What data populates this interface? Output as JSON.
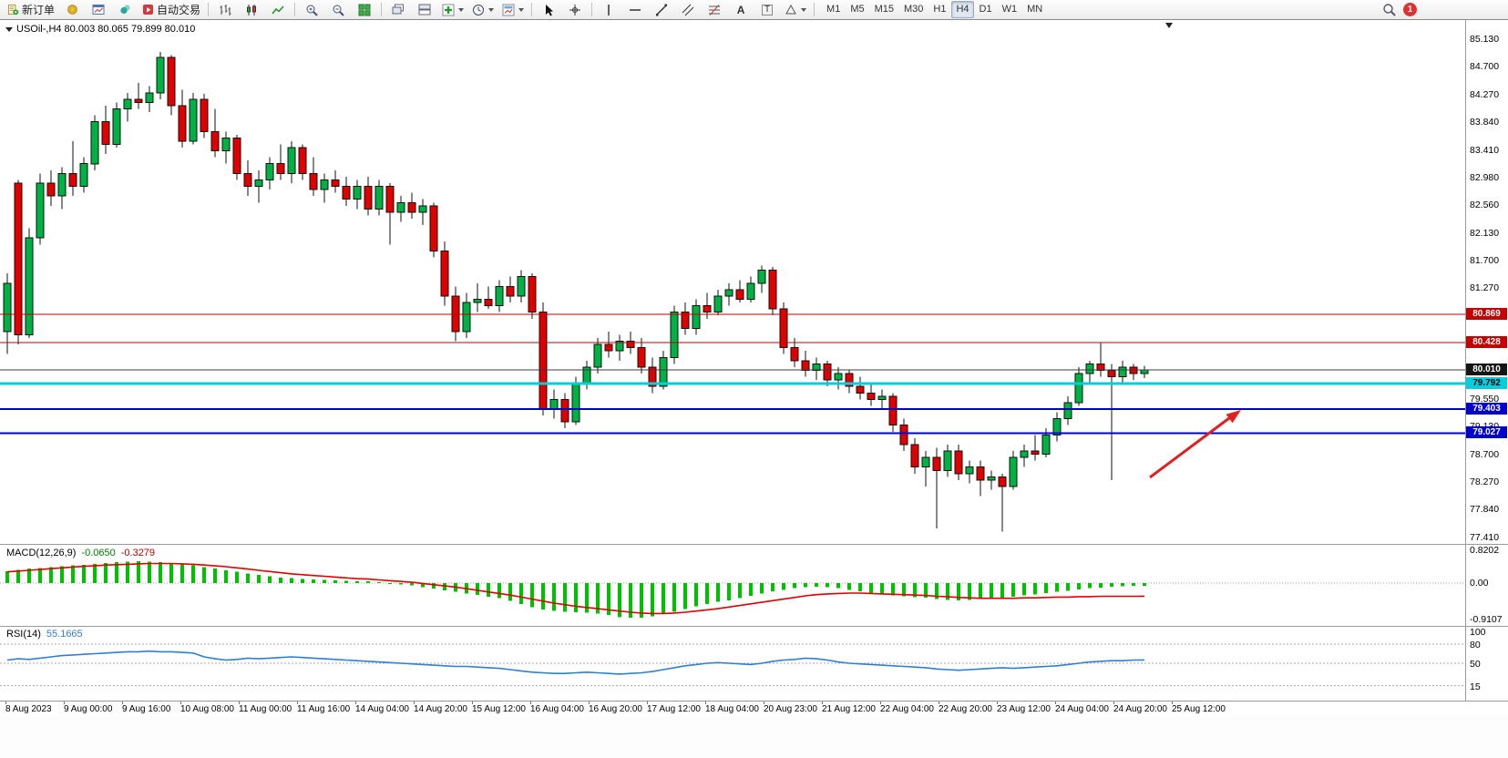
{
  "toolbar": {
    "new_order_label": "新订单",
    "autotrading_label": "自动交易",
    "text_tool_label": "A",
    "label_tool_label": "T",
    "timeframes": [
      "M1",
      "M5",
      "M15",
      "M30",
      "H1",
      "H4",
      "D1",
      "W1",
      "MN"
    ],
    "active_timeframe": "H4",
    "notification_count": "1"
  },
  "chart": {
    "title": "USOil-,H4 80.003 80.065 79.899 80.010",
    "symbol": "USOil-",
    "timeframe": "H4",
    "ohlc": {
      "open": "80.003",
      "high": "80.065",
      "low": "79.899",
      "close": "80.010"
    }
  },
  "price_axis": {
    "labels": [
      "85.130",
      "84.700",
      "84.270",
      "83.840",
      "83.410",
      "82.980",
      "82.560",
      "82.130",
      "81.700",
      "81.270",
      "79.550",
      "79.130",
      "78.700",
      "78.270",
      "77.840",
      "77.410"
    ],
    "badges": [
      {
        "text": "80.869",
        "price": 80.869,
        "bg": "#c40000",
        "fg": "#ffffff"
      },
      {
        "text": "80.428",
        "price": 80.428,
        "bg": "#c40000",
        "fg": "#ffffff"
      },
      {
        "text": "80.010",
        "price": 80.01,
        "bg": "#151515",
        "fg": "#ffffff"
      },
      {
        "text": "79.792",
        "price": 79.792,
        "bg": "#00cfe0",
        "fg": "#000000"
      },
      {
        "text": "79.403",
        "price": 79.403,
        "bg": "#0000cd",
        "fg": "#ffffff"
      },
      {
        "text": "79.027",
        "price": 79.027,
        "bg": "#0000cd",
        "fg": "#ffffff"
      }
    ]
  },
  "hlines": [
    {
      "price": 80.869,
      "color": "#c40000",
      "width": 1
    },
    {
      "price": 80.428,
      "color": "#c40000",
      "width": 1
    },
    {
      "price": 80.01,
      "color": "#3c3c3c",
      "width": 1
    },
    {
      "price": 79.792,
      "color": "#00cfe0",
      "width": 3
    },
    {
      "price": 79.403,
      "color": "#0000cd",
      "width": 2
    },
    {
      "price": 79.027,
      "color": "#0000cd",
      "width": 2
    }
  ],
  "time_axis": {
    "labels": [
      "8 Aug 2023",
      "9 Aug 00:00",
      "9 Aug 16:00",
      "10 Aug 08:00",
      "11 Aug 00:00",
      "11 Aug 16:00",
      "14 Aug 04:00",
      "14 Aug 20:00",
      "15 Aug 12:00",
      "16 Aug 04:00",
      "16 Aug 20:00",
      "17 Aug 12:00",
      "18 Aug 04:00",
      "20 Aug 23:00",
      "21 Aug 12:00",
      "22 Aug 04:00",
      "22 Aug 20:00",
      "23 Aug 12:00",
      "24 Aug 04:00",
      "24 Aug 20:00",
      "25 Aug 12:00"
    ]
  },
  "macd": {
    "name": "MACD(12,26,9)",
    "value_main": "-0.0650",
    "value_signal": "-0.3279",
    "axis": [
      {
        "text": "0.8202",
        "v": 0.8202
      },
      {
        "text": "0.00",
        "v": 0
      },
      {
        "text": "-0.9107",
        "v": -0.9107
      }
    ]
  },
  "rsi": {
    "name": "RSI(14)",
    "value": "55.1665",
    "axis": [
      {
        "text": "100",
        "v": 100
      },
      {
        "text": "80",
        "v": 80
      },
      {
        "text": "50",
        "v": 50
      },
      {
        "text": "15",
        "v": 15
      }
    ],
    "levels": [
      80,
      50,
      15
    ]
  },
  "annotations": {
    "arrow": {
      "color": "#e02020"
    }
  },
  "colors": {
    "candle_up": "#00b244",
    "candle_down": "#e00000",
    "candle_outline": "#111111",
    "macd_hist": "#00c000",
    "macd_signal": "#e00000",
    "rsi_line": "#2f7ed8",
    "level_dash": "#aaaaaa"
  },
  "chart_data": {
    "type": "candlestick",
    "symbol": "USOil-",
    "period": "H4",
    "ylim": [
      77.41,
      85.13
    ],
    "candles": [
      [
        80.6,
        81.5,
        80.25,
        81.35
      ],
      [
        82.9,
        82.95,
        80.4,
        80.55
      ],
      [
        80.55,
        82.2,
        80.5,
        82.05
      ],
      [
        82.05,
        83.05,
        81.95,
        82.9
      ],
      [
        82.9,
        83.1,
        82.55,
        82.7
      ],
      [
        82.7,
        83.15,
        82.5,
        83.05
      ],
      [
        83.05,
        83.55,
        82.7,
        82.85
      ],
      [
        82.85,
        83.3,
        82.75,
        83.2
      ],
      [
        83.2,
        83.95,
        83.1,
        83.85
      ],
      [
        83.85,
        84.1,
        83.35,
        83.5
      ],
      [
        83.5,
        84.15,
        83.45,
        84.05
      ],
      [
        84.05,
        84.3,
        83.85,
        84.2
      ],
      [
        84.2,
        84.45,
        84.05,
        84.15
      ],
      [
        84.15,
        84.4,
        84.0,
        84.3
      ],
      [
        84.3,
        84.93,
        84.2,
        84.85
      ],
      [
        84.85,
        84.88,
        83.95,
        84.1
      ],
      [
        84.1,
        84.35,
        83.45,
        83.55
      ],
      [
        83.55,
        84.3,
        83.5,
        84.2
      ],
      [
        84.2,
        84.28,
        83.6,
        83.7
      ],
      [
        83.7,
        84.05,
        83.3,
        83.4
      ],
      [
        83.4,
        83.7,
        83.2,
        83.6
      ],
      [
        83.6,
        83.65,
        82.95,
        83.05
      ],
      [
        83.05,
        83.25,
        82.7,
        82.85
      ],
      [
        82.85,
        83.1,
        82.6,
        82.95
      ],
      [
        82.95,
        83.3,
        82.8,
        83.2
      ],
      [
        83.2,
        83.5,
        82.95,
        83.05
      ],
      [
        83.05,
        83.55,
        82.9,
        83.45
      ],
      [
        83.45,
        83.5,
        82.95,
        83.05
      ],
      [
        83.05,
        83.3,
        82.7,
        82.8
      ],
      [
        82.8,
        83.05,
        82.6,
        82.95
      ],
      [
        82.95,
        83.1,
        82.75,
        82.85
      ],
      [
        82.85,
        83.0,
        82.55,
        82.65
      ],
      [
        82.65,
        82.95,
        82.5,
        82.85
      ],
      [
        82.85,
        83.0,
        82.4,
        82.5
      ],
      [
        82.5,
        82.95,
        82.4,
        82.85
      ],
      [
        82.85,
        82.9,
        81.95,
        82.45
      ],
      [
        82.45,
        82.7,
        82.3,
        82.6
      ],
      [
        82.6,
        82.75,
        82.35,
        82.45
      ],
      [
        82.45,
        82.65,
        82.25,
        82.55
      ],
      [
        82.55,
        82.6,
        81.75,
        81.85
      ],
      [
        81.85,
        82.0,
        81.0,
        81.15
      ],
      [
        81.15,
        81.3,
        80.45,
        80.6
      ],
      [
        80.6,
        81.2,
        80.5,
        81.05
      ],
      [
        81.05,
        81.35,
        80.9,
        81.1
      ],
      [
        81.1,
        81.3,
        80.95,
        81.0
      ],
      [
        81.0,
        81.4,
        80.9,
        81.3
      ],
      [
        81.3,
        81.45,
        81.05,
        81.15
      ],
      [
        81.15,
        81.55,
        81.05,
        81.45
      ],
      [
        81.45,
        81.5,
        80.8,
        80.9
      ],
      [
        80.9,
        81.05,
        79.3,
        79.4
      ],
      [
        79.4,
        79.7,
        79.25,
        79.55
      ],
      [
        79.55,
        79.65,
        79.1,
        79.2
      ],
      [
        79.2,
        79.9,
        79.15,
        79.8
      ],
      [
        79.8,
        80.15,
        79.7,
        80.05
      ],
      [
        80.05,
        80.5,
        79.95,
        80.4
      ],
      [
        80.4,
        80.6,
        80.2,
        80.3
      ],
      [
        80.3,
        80.55,
        80.15,
        80.45
      ],
      [
        80.45,
        80.6,
        80.25,
        80.35
      ],
      [
        80.35,
        80.5,
        79.95,
        80.05
      ],
      [
        80.05,
        80.2,
        79.65,
        79.75
      ],
      [
        79.75,
        80.3,
        79.7,
        80.2
      ],
      [
        80.2,
        81.0,
        80.1,
        80.9
      ],
      [
        80.9,
        81.05,
        80.55,
        80.65
      ],
      [
        80.65,
        81.1,
        80.55,
        81.0
      ],
      [
        81.0,
        81.2,
        80.8,
        80.9
      ],
      [
        80.9,
        81.25,
        80.85,
        81.15
      ],
      [
        81.15,
        81.35,
        81.0,
        81.25
      ],
      [
        81.25,
        81.4,
        81.05,
        81.1
      ],
      [
        81.1,
        81.45,
        81.05,
        81.35
      ],
      [
        81.35,
        81.62,
        81.2,
        81.55
      ],
      [
        81.55,
        81.6,
        80.85,
        80.95
      ],
      [
        80.95,
        81.05,
        80.25,
        80.35
      ],
      [
        80.35,
        80.5,
        80.05,
        80.15
      ],
      [
        80.15,
        80.3,
        79.9,
        80.0
      ],
      [
        80.0,
        80.2,
        79.85,
        80.1
      ],
      [
        80.1,
        80.15,
        79.75,
        79.85
      ],
      [
        79.85,
        80.05,
        79.7,
        79.95
      ],
      [
        79.95,
        80.0,
        79.65,
        79.75
      ],
      [
        79.75,
        79.9,
        79.55,
        79.65
      ],
      [
        79.65,
        79.8,
        79.45,
        79.55
      ],
      [
        79.55,
        79.7,
        79.4,
        79.6
      ],
      [
        79.6,
        79.65,
        79.05,
        79.15
      ],
      [
        79.15,
        79.25,
        78.75,
        78.85
      ],
      [
        78.85,
        78.95,
        78.4,
        78.5
      ],
      [
        78.5,
        78.75,
        78.2,
        78.65
      ],
      [
        78.65,
        78.8,
        77.55,
        78.45
      ],
      [
        78.45,
        78.85,
        78.35,
        78.75
      ],
      [
        78.75,
        78.85,
        78.3,
        78.4
      ],
      [
        78.4,
        78.6,
        78.25,
        78.5
      ],
      [
        78.5,
        78.6,
        78.05,
        78.3
      ],
      [
        78.3,
        78.45,
        78.15,
        78.35
      ],
      [
        78.35,
        78.4,
        77.5,
        78.2
      ],
      [
        78.2,
        78.75,
        78.15,
        78.65
      ],
      [
        78.65,
        78.85,
        78.5,
        78.75
      ],
      [
        78.75,
        79.0,
        78.6,
        78.7
      ],
      [
        78.7,
        79.1,
        78.65,
        79.0
      ],
      [
        79.0,
        79.35,
        78.9,
        79.25
      ],
      [
        79.25,
        79.6,
        79.15,
        79.5
      ],
      [
        79.5,
        80.05,
        79.45,
        79.95
      ],
      [
        79.95,
        80.15,
        79.8,
        80.1
      ],
      [
        80.1,
        80.43,
        79.9,
        80.0
      ],
      [
        80.0,
        80.1,
        78.3,
        79.9
      ],
      [
        79.9,
        80.15,
        79.8,
        80.05
      ],
      [
        80.05,
        80.1,
        79.85,
        79.95
      ],
      [
        79.95,
        80.07,
        79.88,
        80.01
      ]
    ],
    "macd_histogram": [
      0.3,
      0.33,
      0.36,
      0.38,
      0.4,
      0.42,
      0.44,
      0.46,
      0.48,
      0.5,
      0.52,
      0.54,
      0.55,
      0.54,
      0.52,
      0.5,
      0.47,
      0.44,
      0.4,
      0.36,
      0.32,
      0.28,
      0.24,
      0.2,
      0.17,
      0.14,
      0.12,
      0.1,
      0.09,
      0.08,
      0.07,
      0.06,
      0.05,
      0.04,
      0.02,
      0.0,
      -0.03,
      -0.06,
      -0.1,
      -0.14,
      -0.18,
      -0.22,
      -0.26,
      -0.3,
      -0.34,
      -0.38,
      -0.44,
      -0.52,
      -0.6,
      -0.66,
      -0.7,
      -0.72,
      -0.73,
      -0.74,
      -0.76,
      -0.8,
      -0.85,
      -0.87,
      -0.86,
      -0.83,
      -0.78,
      -0.72,
      -0.65,
      -0.58,
      -0.52,
      -0.47,
      -0.43,
      -0.38,
      -0.32,
      -0.26,
      -0.21,
      -0.17,
      -0.13,
      -0.1,
      -0.09,
      -0.1,
      -0.13,
      -0.17,
      -0.21,
      -0.25,
      -0.28,
      -0.31,
      -0.33,
      -0.35,
      -0.37,
      -0.4,
      -0.42,
      -0.43,
      -0.42,
      -0.4,
      -0.38,
      -0.36,
      -0.34,
      -0.31,
      -0.28,
      -0.25,
      -0.22,
      -0.19,
      -0.16,
      -0.13,
      -0.11,
      -0.09,
      -0.08,
      -0.07,
      -0.065
    ],
    "macd_signal": [
      0.28,
      0.3,
      0.32,
      0.34,
      0.36,
      0.38,
      0.4,
      0.42,
      0.43,
      0.45,
      0.46,
      0.47,
      0.48,
      0.49,
      0.49,
      0.49,
      0.48,
      0.47,
      0.45,
      0.43,
      0.41,
      0.38,
      0.35,
      0.32,
      0.29,
      0.26,
      0.23,
      0.21,
      0.19,
      0.17,
      0.15,
      0.13,
      0.11,
      0.1,
      0.08,
      0.06,
      0.04,
      0.02,
      -0.01,
      -0.04,
      -0.07,
      -0.1,
      -0.14,
      -0.18,
      -0.22,
      -0.26,
      -0.3,
      -0.35,
      -0.4,
      -0.45,
      -0.5,
      -0.54,
      -0.58,
      -0.61,
      -0.64,
      -0.67,
      -0.7,
      -0.73,
      -0.75,
      -0.76,
      -0.76,
      -0.75,
      -0.73,
      -0.7,
      -0.67,
      -0.64,
      -0.6,
      -0.56,
      -0.52,
      -0.48,
      -0.44,
      -0.4,
      -0.36,
      -0.32,
      -0.29,
      -0.27,
      -0.26,
      -0.25,
      -0.25,
      -0.26,
      -0.27,
      -0.28,
      -0.29,
      -0.3,
      -0.31,
      -0.33,
      -0.34,
      -0.36,
      -0.37,
      -0.38,
      -0.38,
      -0.38,
      -0.38,
      -0.37,
      -0.37,
      -0.36,
      -0.35,
      -0.35,
      -0.34,
      -0.34,
      -0.33,
      -0.33,
      -0.33,
      -0.33,
      -0.328
    ],
    "rsi_values": [
      55,
      57,
      56,
      58,
      60,
      62,
      63,
      64,
      65,
      66,
      67,
      68,
      68,
      69,
      68,
      68,
      67,
      66,
      60,
      57,
      55,
      56,
      58,
      57,
      58,
      59,
      60,
      59,
      58,
      57,
      56,
      55,
      54,
      53,
      52,
      51,
      50,
      49,
      48,
      47,
      46,
      45,
      45,
      44,
      43,
      42,
      40,
      38,
      36,
      35,
      34,
      34,
      35,
      36,
      35,
      34,
      33,
      34,
      35,
      37,
      40,
      43,
      46,
      48,
      50,
      51,
      50,
      49,
      48,
      50,
      53,
      55,
      56,
      58,
      57,
      55,
      52,
      50,
      49,
      48,
      47,
      46,
      45,
      44,
      43,
      41,
      40,
      39,
      40,
      41,
      42,
      43,
      42,
      43,
      44,
      45,
      46,
      48,
      50,
      52,
      53,
      54,
      54,
      55,
      55.17
    ]
  }
}
